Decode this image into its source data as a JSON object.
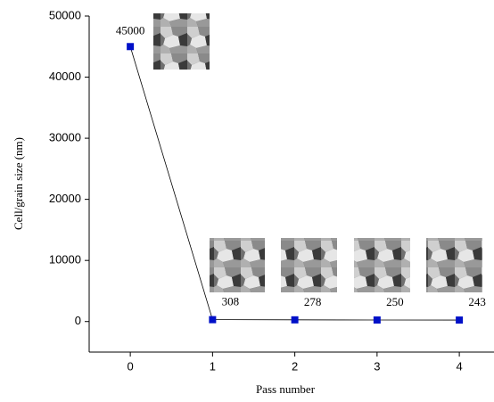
{
  "chart_data": {
    "type": "line",
    "x": [
      0,
      1,
      2,
      3,
      4
    ],
    "series": [
      {
        "color": "#0010c8",
        "values": [
          45000,
          308,
          278,
          250,
          243
        ]
      }
    ],
    "xlim": [
      -0.5,
      4.4
    ],
    "xticks": [
      0,
      1,
      2,
      3,
      4
    ],
    "ylim": [
      -5000,
      50000
    ],
    "yticks": [
      0,
      10000,
      20000,
      30000,
      40000,
      50000
    ],
    "x_label": "Pass number",
    "y_label": "Cell/grain size (nm)"
  }
}
